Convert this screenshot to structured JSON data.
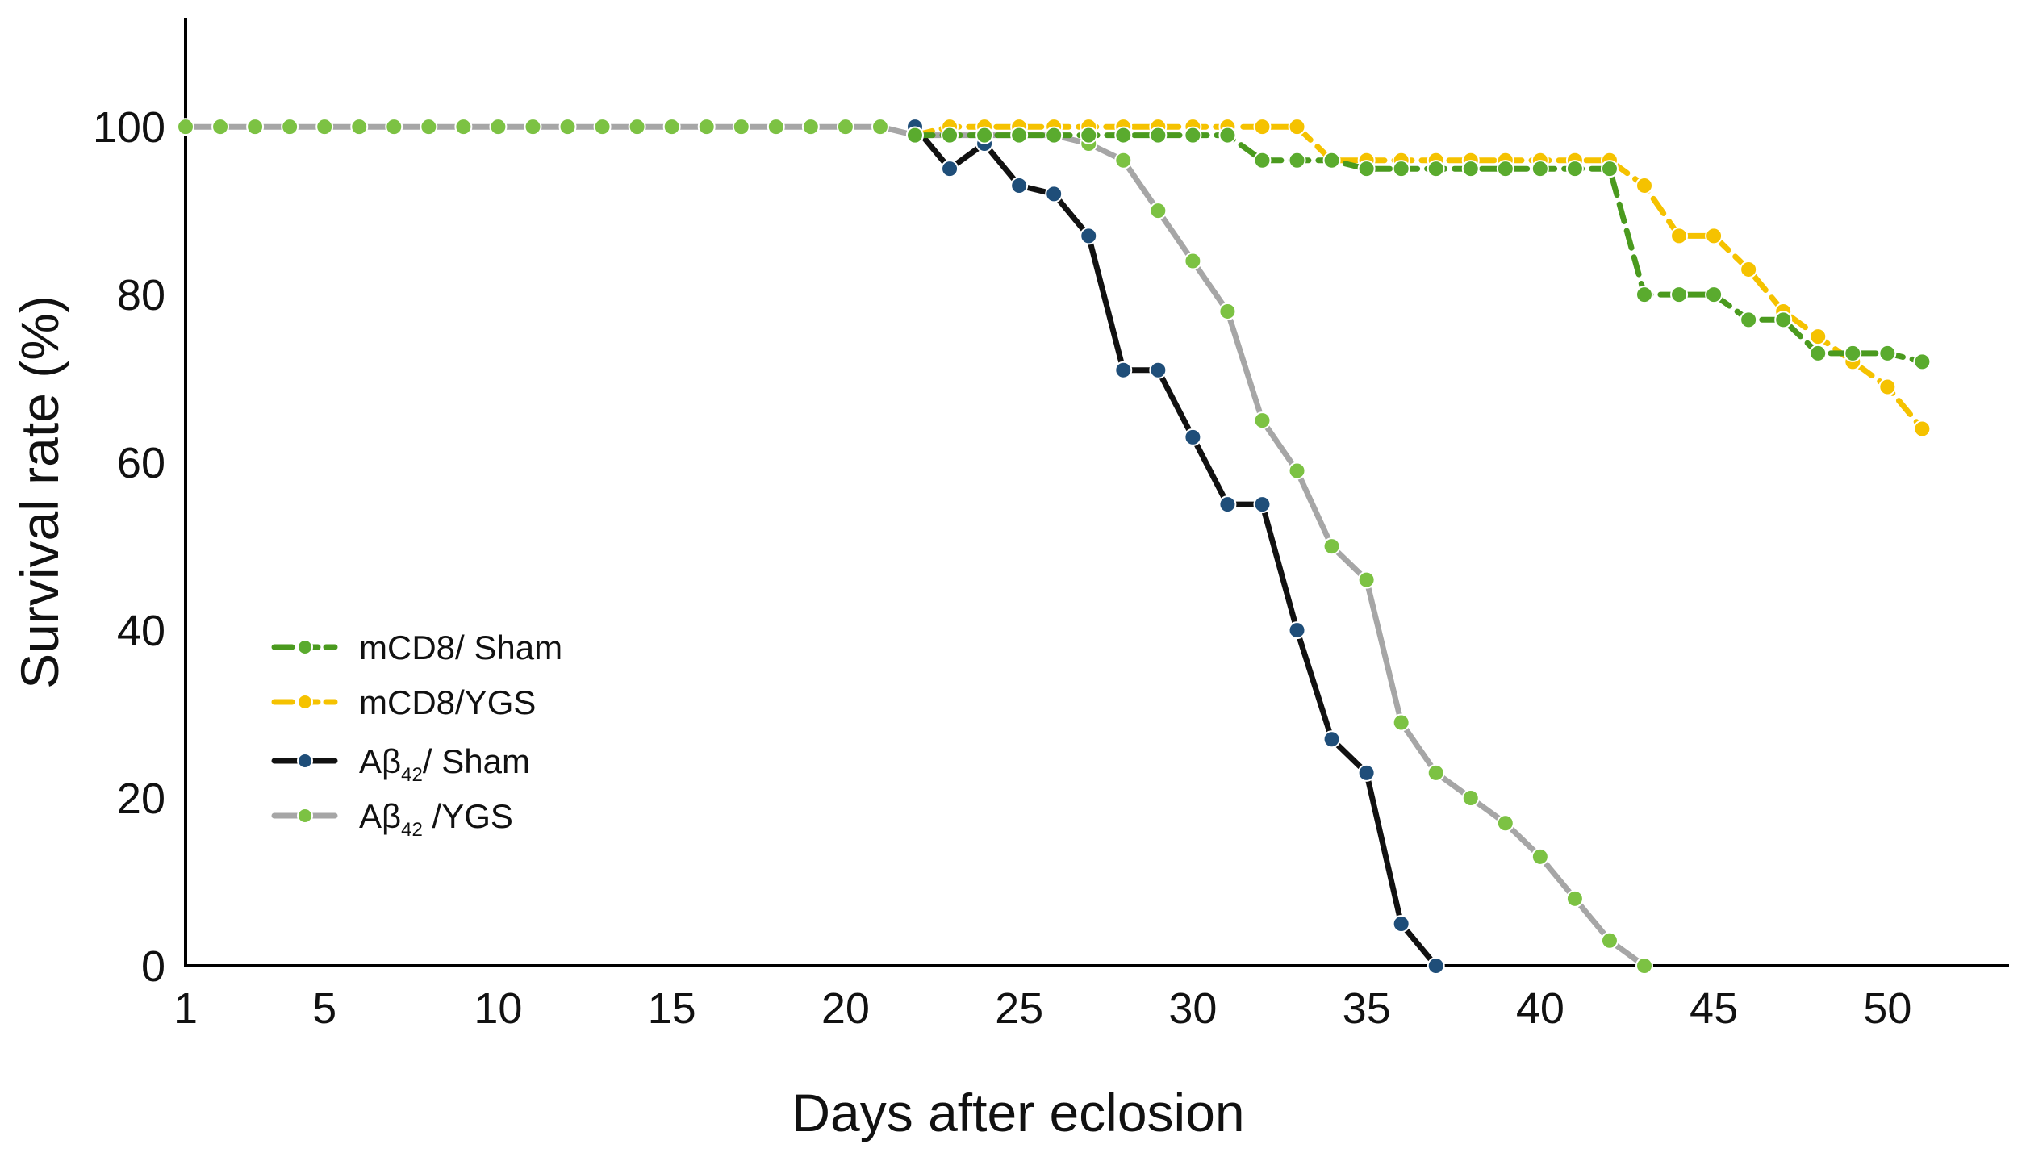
{
  "chart_data": {
    "type": "line",
    "title": "",
    "xlabel": "Days after eclosion",
    "ylabel": "Survival rate (%)",
    "xlim": [
      1,
      53.5
    ],
    "ylim": [
      0,
      113
    ],
    "x_ticks": [
      1,
      5,
      10,
      15,
      20,
      25,
      30,
      35,
      40,
      45,
      50
    ],
    "x_tick_labels": [
      "1",
      "5",
      "10",
      "15",
      "20",
      "25",
      "30",
      "35",
      "40",
      "45",
      "50"
    ],
    "y_ticks": [
      0,
      20,
      40,
      60,
      80,
      100
    ],
    "y_tick_labels": [
      "0",
      "20",
      "40",
      "60",
      "80",
      "100"
    ],
    "grid": false,
    "legend_position": "left-middle",
    "series": [
      {
        "name": "mCD8/ Sham",
        "legend": {
          "main": "mCD8",
          "sub": "",
          "tail": "/ Sham"
        },
        "color": "#4a9a1e",
        "marker_color": "#5aab2e",
        "dashed": true,
        "x": [
          22,
          23,
          24,
          25,
          26,
          27,
          28,
          29,
          30,
          31,
          32,
          33,
          34,
          35,
          36,
          37,
          38,
          39,
          40,
          41,
          42,
          43,
          44,
          45,
          46,
          47,
          48,
          49,
          50,
          51
        ],
        "y": [
          99,
          99,
          99,
          99,
          99,
          99,
          99,
          99,
          99,
          99,
          96,
          96,
          96,
          95,
          95,
          95,
          95,
          95,
          95,
          95,
          95,
          80,
          80,
          80,
          77,
          77,
          73,
          73,
          73,
          72
        ]
      },
      {
        "name": "mCD8/YGS",
        "legend": {
          "main": "mCD8",
          "sub": "",
          "tail": "/YGS"
        },
        "color": "#f5c200",
        "marker_color": "#f5c200",
        "dashed": true,
        "x": [
          22,
          23,
          24,
          25,
          26,
          27,
          28,
          29,
          30,
          31,
          32,
          33,
          34,
          35,
          36,
          37,
          38,
          39,
          40,
          41,
          42,
          43,
          44,
          45,
          46,
          47,
          48,
          49,
          50,
          51
        ],
        "y": [
          99,
          100,
          100,
          100,
          100,
          100,
          100,
          100,
          100,
          100,
          100,
          100,
          96,
          96,
          96,
          96,
          96,
          96,
          96,
          96,
          96,
          93,
          87,
          87,
          83,
          78,
          75,
          72,
          69,
          64
        ]
      },
      {
        "name": "Aβ42/ Sham",
        "legend": {
          "main": "Aβ",
          "sub": "42",
          "tail": "/ Sham"
        },
        "color": "#111111",
        "marker_color": "#1f4e79",
        "dashed": false,
        "x": [
          22,
          23,
          24,
          25,
          26,
          27,
          28,
          29,
          30,
          31,
          32,
          33,
          34,
          35,
          36,
          37
        ],
        "y": [
          100,
          95,
          98,
          93,
          92,
          87,
          71,
          71,
          63,
          55,
          55,
          40,
          27,
          23,
          5,
          0
        ]
      },
      {
        "name": "Aβ42 /YGS",
        "legend": {
          "main": "Aβ",
          "sub": "42",
          "tail": " /YGS"
        },
        "color": "#a6a6a6",
        "marker_color": "#7cc243",
        "dashed": false,
        "x": [
          1,
          2,
          3,
          4,
          5,
          6,
          7,
          8,
          9,
          10,
          11,
          12,
          13,
          14,
          15,
          16,
          17,
          18,
          19,
          20,
          21,
          22,
          23,
          24,
          25,
          26,
          27,
          28,
          29,
          30,
          31,
          32,
          33,
          34,
          35,
          36,
          37,
          38,
          39,
          40,
          41,
          42,
          43
        ],
        "y": [
          100,
          100,
          100,
          100,
          100,
          100,
          100,
          100,
          100,
          100,
          100,
          100,
          100,
          100,
          100,
          100,
          100,
          100,
          100,
          100,
          100,
          99,
          99,
          99,
          99,
          99,
          98,
          96,
          90,
          84,
          78,
          65,
          59,
          50,
          46,
          29,
          23,
          20,
          17,
          13,
          8,
          3,
          0
        ]
      }
    ]
  }
}
